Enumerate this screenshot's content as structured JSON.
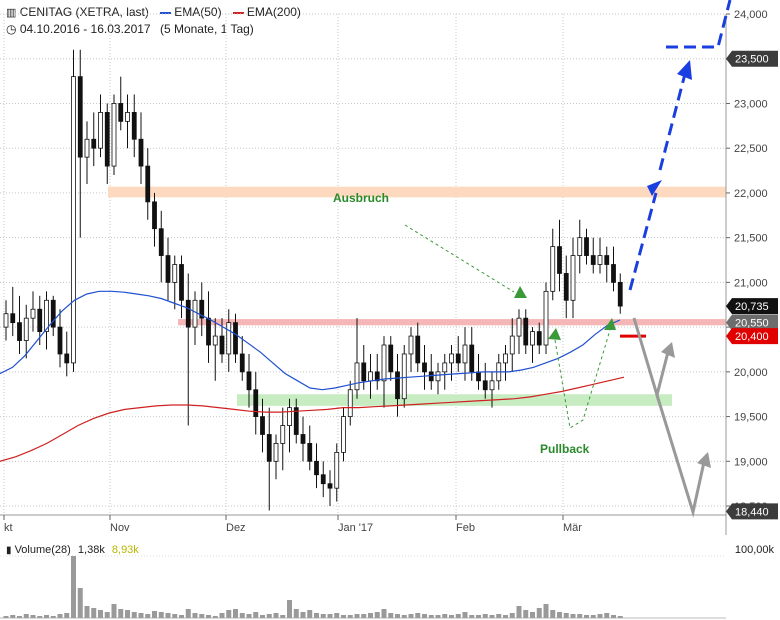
{
  "header": {
    "symbol": "CENITAG (XETRA, last)",
    "range": "04.10.2016 - 16.03.2017",
    "interval": "(5 Monate, 1 Tag)",
    "legend": [
      {
        "label": "EMA(50)",
        "color": "#2050d0"
      },
      {
        "label": "EMA(200)",
        "color": "#d02020"
      }
    ]
  },
  "volume_panel": {
    "label": "Volume(28)",
    "value1": "1,38k",
    "value2": "8,93k",
    "value2_color": "#b8b800",
    "max_label": "100,00k"
  },
  "chart_data": {
    "type": "candlestick",
    "x_ticks": [
      "kt",
      "Nov",
      "Dez",
      "Jan '17",
      "Feb",
      "Mär"
    ],
    "y_ticks": [
      "24,000",
      "23,500",
      "23,000",
      "22,500",
      "22,000",
      "21,500",
      "21,000",
      "20,500",
      "20,000",
      "19,500",
      "19,000",
      "18,500"
    ],
    "ylim": [
      18.4,
      24.0
    ],
    "price_tags": [
      {
        "label": "23,500",
        "value": 23.5,
        "style": "dark"
      },
      {
        "label": "20,735",
        "value": 20.735,
        "style": "black"
      },
      {
        "label": "20,550",
        "value": 20.55,
        "style": "gray"
      },
      {
        "label": "20,400",
        "value": 20.4,
        "style": "red"
      },
      {
        "label": "18,440",
        "value": 18.44,
        "style": "dark"
      }
    ],
    "zones": [
      {
        "name": "resistance",
        "low": 21.95,
        "high": 22.07,
        "color": "#fdd9bf"
      },
      {
        "name": "breakout-level",
        "low": 20.52,
        "high": 20.59,
        "color": "#f4b6b6"
      },
      {
        "name": "support",
        "low": 19.62,
        "high": 19.75,
        "color": "#c7ecc2"
      }
    ],
    "annotations": [
      {
        "text": "Ausbruch",
        "color": "#2a8a2a"
      },
      {
        "text": "Pullback",
        "color": "#2a8a2a"
      }
    ],
    "candles": [
      [
        20.5,
        20.8,
        20.35,
        20.65
      ],
      [
        20.65,
        20.95,
        20.4,
        20.55
      ],
      [
        20.55,
        20.85,
        20.2,
        20.35
      ],
      [
        20.35,
        20.75,
        20.15,
        20.6
      ],
      [
        20.6,
        20.9,
        20.45,
        20.7
      ],
      [
        20.7,
        20.85,
        20.3,
        20.45
      ],
      [
        20.45,
        20.9,
        20.25,
        20.8
      ],
      [
        20.8,
        20.85,
        20.4,
        20.5
      ],
      [
        20.5,
        20.7,
        20.05,
        20.2
      ],
      [
        20.2,
        20.45,
        19.95,
        20.1
      ],
      [
        20.1,
        23.6,
        20.0,
        23.3
      ],
      [
        23.3,
        23.6,
        21.5,
        22.4
      ],
      [
        22.4,
        22.8,
        22.1,
        22.6
      ],
      [
        22.6,
        22.9,
        22.3,
        22.5
      ],
      [
        22.5,
        23.1,
        22.4,
        22.9
      ],
      [
        22.9,
        23.0,
        22.1,
        22.3
      ],
      [
        22.3,
        23.1,
        22.2,
        23.0
      ],
      [
        23.0,
        23.3,
        22.7,
        22.8
      ],
      [
        22.8,
        23.1,
        22.5,
        22.9
      ],
      [
        22.9,
        23.1,
        22.4,
        22.6
      ],
      [
        22.6,
        22.9,
        22.1,
        22.3
      ],
      [
        22.3,
        22.5,
        21.7,
        21.9
      ],
      [
        21.9,
        22.0,
        21.4,
        21.6
      ],
      [
        21.6,
        21.8,
        21.0,
        21.3
      ],
      [
        21.3,
        21.5,
        20.8,
        21.0
      ],
      [
        21.0,
        21.3,
        20.7,
        21.2
      ],
      [
        21.2,
        21.3,
        20.6,
        20.8
      ],
      [
        20.8,
        21.1,
        19.4,
        20.5
      ],
      [
        20.5,
        20.9,
        20.3,
        20.8
      ],
      [
        20.8,
        21.0,
        20.4,
        20.6
      ],
      [
        20.6,
        20.9,
        20.1,
        20.3
      ],
      [
        20.3,
        20.6,
        19.9,
        20.4
      ],
      [
        20.4,
        20.6,
        20.1,
        20.2
      ],
      [
        20.2,
        20.7,
        20.0,
        20.55
      ],
      [
        20.55,
        20.65,
        20.1,
        20.2
      ],
      [
        20.2,
        20.4,
        19.9,
        20.0
      ],
      [
        20.0,
        20.2,
        19.6,
        19.8
      ],
      [
        19.8,
        20.0,
        19.3,
        19.5
      ],
      [
        19.5,
        19.7,
        19.1,
        19.3
      ],
      [
        19.3,
        19.6,
        18.45,
        19.0
      ],
      [
        19.0,
        19.3,
        18.8,
        19.2
      ],
      [
        19.2,
        19.6,
        18.9,
        19.4
      ],
      [
        19.4,
        19.7,
        19.1,
        19.6
      ],
      [
        19.6,
        19.7,
        19.2,
        19.3
      ],
      [
        19.3,
        19.5,
        19.0,
        19.2
      ],
      [
        19.2,
        19.4,
        18.9,
        19.0
      ],
      [
        19.0,
        19.2,
        18.7,
        18.85
      ],
      [
        18.85,
        19.0,
        18.6,
        18.75
      ],
      [
        18.75,
        18.9,
        18.5,
        18.7
      ],
      [
        18.7,
        19.2,
        18.55,
        19.1
      ],
      [
        19.1,
        19.6,
        19.0,
        19.5
      ],
      [
        19.5,
        19.9,
        19.4,
        19.8
      ],
      [
        19.8,
        20.6,
        19.7,
        20.1
      ],
      [
        20.1,
        20.3,
        19.8,
        19.9
      ],
      [
        19.9,
        20.2,
        19.7,
        20.0
      ],
      [
        20.0,
        20.2,
        19.8,
        19.9
      ],
      [
        19.9,
        20.4,
        19.6,
        20.3
      ],
      [
        20.3,
        20.4,
        19.9,
        20.0
      ],
      [
        20.0,
        20.2,
        19.5,
        19.7
      ],
      [
        19.7,
        20.3,
        19.6,
        20.2
      ],
      [
        20.2,
        20.5,
        20.0,
        20.4
      ],
      [
        20.4,
        20.55,
        20.0,
        20.1
      ],
      [
        20.1,
        20.3,
        19.8,
        20.0
      ],
      [
        20.0,
        20.2,
        19.8,
        19.9
      ],
      [
        19.9,
        20.1,
        19.75,
        20.0
      ],
      [
        20.0,
        20.2,
        19.8,
        20.1
      ],
      [
        20.1,
        20.3,
        19.9,
        20.2
      ],
      [
        20.2,
        20.4,
        20.0,
        20.1
      ],
      [
        20.1,
        20.5,
        19.9,
        20.3
      ],
      [
        20.3,
        20.5,
        19.9,
        20.0
      ],
      [
        20.0,
        20.2,
        19.8,
        19.9
      ],
      [
        19.9,
        20.1,
        19.7,
        19.8
      ],
      [
        19.8,
        20.0,
        19.6,
        19.9
      ],
      [
        19.9,
        20.2,
        19.8,
        20.1
      ],
      [
        20.1,
        20.3,
        19.9,
        20.2
      ],
      [
        20.2,
        20.6,
        20.0,
        20.4
      ],
      [
        20.4,
        20.7,
        20.2,
        20.6
      ],
      [
        20.6,
        20.7,
        20.2,
        20.3
      ],
      [
        20.3,
        20.5,
        20.1,
        20.45
      ],
      [
        20.45,
        20.55,
        20.2,
        20.3
      ],
      [
        20.3,
        21.0,
        20.2,
        20.9
      ],
      [
        20.9,
        21.6,
        20.8,
        21.4
      ],
      [
        21.4,
        21.7,
        20.9,
        21.1
      ],
      [
        21.1,
        21.3,
        20.6,
        20.8
      ],
      [
        20.8,
        21.5,
        20.6,
        21.3
      ],
      [
        21.3,
        21.7,
        21.1,
        21.5
      ],
      [
        21.5,
        21.6,
        21.2,
        21.3
      ],
      [
        21.3,
        21.5,
        21.1,
        21.2
      ],
      [
        21.2,
        21.5,
        21.1,
        21.3
      ],
      [
        21.3,
        21.4,
        21.0,
        21.2
      ],
      [
        21.2,
        21.4,
        20.9,
        21.0
      ],
      [
        21.0,
        21.1,
        20.65,
        20.735
      ]
    ],
    "ema50": [
      19.98,
      20.05,
      20.18,
      20.35,
      20.52,
      20.68,
      20.8,
      20.87,
      20.9,
      20.9,
      20.89,
      20.87,
      20.85,
      20.82,
      20.77,
      20.72,
      20.65,
      20.58,
      20.5,
      20.42,
      20.32,
      20.22,
      20.1,
      19.98,
      19.9,
      19.82,
      19.8,
      19.82,
      19.85,
      19.88,
      19.9,
      19.92,
      19.93,
      19.94,
      19.95,
      19.96,
      19.97,
      19.98,
      19.99,
      20.0,
      20.0,
      20.0,
      20.02,
      20.05,
      20.1,
      20.15,
      20.22,
      20.3,
      20.42,
      20.52,
      20.58
    ],
    "ema200": [
      19.0,
      19.05,
      19.12,
      19.2,
      19.3,
      19.4,
      19.48,
      19.54,
      19.58,
      19.6,
      19.62,
      19.63,
      19.63,
      19.62,
      19.6,
      19.58,
      19.56,
      19.55,
      19.55,
      19.56,
      19.57,
      19.58,
      19.6,
      19.6,
      19.61,
      19.62,
      19.63,
      19.64,
      19.65,
      19.66,
      19.67,
      19.68,
      19.69,
      19.7,
      19.72,
      19.75,
      19.78,
      19.82,
      19.86,
      19.9,
      19.94
    ],
    "volume": [
      2,
      3,
      2,
      4,
      3,
      2,
      3,
      2,
      4,
      5,
      62,
      30,
      12,
      10,
      8,
      6,
      14,
      9,
      8,
      6,
      5,
      4,
      7,
      6,
      5,
      4,
      3,
      9,
      5,
      4,
      3,
      2,
      5,
      8,
      9,
      5,
      4,
      6,
      3,
      4,
      5,
      3,
      18,
      9,
      6,
      8,
      5,
      4,
      4,
      5,
      3,
      3,
      4,
      4,
      5,
      6,
      9,
      5,
      4,
      3,
      4,
      5,
      4,
      3,
      3,
      4,
      3,
      4,
      6,
      3,
      3,
      4,
      3,
      4,
      3,
      5,
      12,
      8,
      6,
      10,
      14,
      8,
      6,
      5,
      4,
      4,
      3,
      3,
      4,
      5,
      3,
      2
    ]
  }
}
